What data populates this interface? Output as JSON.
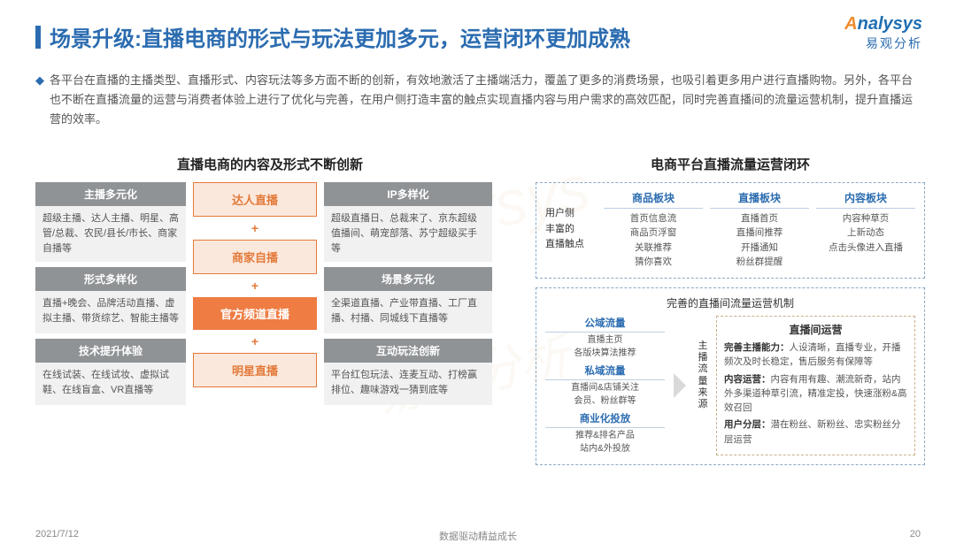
{
  "title": "场景升级:直播电商的形式与玩法更加多元，运营闭环更加成熟",
  "logo": {
    "text": "Analysys",
    "sub": "易观分析"
  },
  "intro": "各平台在直播的主播类型、直播形式、内容玩法等多方面不断的创新，有效地激活了主播端活力，覆盖了更多的消费场景，也吸引着更多用户进行直播购物。另外，各平台也不断在直播流量的运营与消费者体验上进行了优化与完善，在用户侧打造丰富的触点实现直播内容与用户需求的高效匹配，同时完善直播间的流量运营机制，提升直播运营的效率。",
  "leftHeader": "直播电商的内容及形式不断创新",
  "rightHeader": "电商平台直播流量运营闭环",
  "leftCol1": [
    {
      "head": "主播多元化",
      "body": "超级主播、达人主播、明星、高管/总裁、农民/县长/市长、商家自播等"
    },
    {
      "head": "形式多样化",
      "body": "直播+晚会、品牌活动直播、虚拟主播、带货综艺、智能主播等"
    },
    {
      "head": "技术提升体验",
      "body": "在线试装、在线试妆、虚拟试鞋、在线盲盒、VR直播等"
    }
  ],
  "leftCol2": {
    "items": [
      "达人直播",
      "商家自播",
      "官方频道直播",
      "明星直播"
    ],
    "solidIndex": 2
  },
  "leftCol3": [
    {
      "head": "IP多样化",
      "body": "超级直播日、总裁来了、京东超级值播间、萌宠部落、苏宁超级买手等"
    },
    {
      "head": "场景多元化",
      "body": "全渠道直播、产业带直播、工厂直播、村播、同城线下直播等"
    },
    {
      "head": "互动玩法创新",
      "body": "平台红包玩法、连麦互动、打榜赢排位、趣味游戏一猜到底等"
    }
  ],
  "rightTop": {
    "leftLabel": "用户侧\n丰富的\n直播触点",
    "cols": [
      {
        "head": "商品板块",
        "body": "首页信息流\n商品页浮窗\n关联推荐\n猜你喜欢"
      },
      {
        "head": "直播板块",
        "body": "直播首页\n直播间推荐\n开播通知\n粉丝群提醒"
      },
      {
        "head": "内容板块",
        "body": "内容种草页\n上新动态\n点击头像进入直播"
      }
    ]
  },
  "rightBot": {
    "title": "完善的直播间流量运营机制",
    "left": [
      {
        "head": "公域流量",
        "body": "直播主页\n各版块算法推荐"
      },
      {
        "head": "私域流量",
        "body": "直播间&店铺关注\n会员、粉丝群等"
      },
      {
        "head": "商业化投放",
        "body": "推荐&排名产品\n站内&外投放"
      }
    ],
    "vert": "主播流量来源",
    "right": {
      "title": "直播间运营",
      "items": [
        {
          "b": "完善主播能力：",
          "t": "人设清晰，直播专业，开播频次及时长稳定，售后服务有保障等"
        },
        {
          "b": "内容运营：",
          "t": "内容有用有趣、潮流新奇，站内外多渠道种草引流，精准定投，快速涨粉&高效召回"
        },
        {
          "b": "用户分层：",
          "t": "潜在粉丝、新粉丝、忠实粉丝分层运营"
        }
      ]
    }
  },
  "footer": {
    "date": "2021/7/12",
    "mid": "数据驱动精益成长",
    "page": "20"
  },
  "colors": {
    "blue": "#2b6cb0",
    "orange": "#ee7c43",
    "orangeLight": "#fbe8dc",
    "grayHead": "#8f9396",
    "grayBody": "#f1f1f1"
  }
}
